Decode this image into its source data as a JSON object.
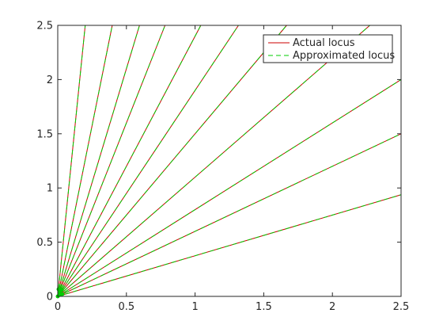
{
  "chart_data": {
    "type": "line",
    "title": "",
    "xlabel": "",
    "ylabel": "",
    "xlim": [
      0,
      2.5
    ],
    "ylim": [
      0,
      2.5
    ],
    "xticks": [
      0,
      0.5,
      1,
      1.5,
      2,
      2.5
    ],
    "yticks": [
      0,
      0.5,
      1,
      1.5,
      2,
      2.5
    ],
    "xtick_labels": [
      "0",
      "0.5",
      "1",
      "1.5",
      "2",
      "2.5"
    ],
    "ytick_labels": [
      "0",
      "0.5",
      "1",
      "1.5",
      "2",
      "2.5"
    ],
    "grid": false,
    "legend_position": "top-right",
    "series": [
      {
        "name": "Actual locus",
        "color": "#cc0000",
        "dash": "solid",
        "ray_slopes": [
          0.375,
          0.6,
          0.8,
          1.1,
          1.5,
          1.9,
          2.4,
          3.2,
          4.2,
          6.3,
          12.5
        ]
      },
      {
        "name": "Approximated locus",
        "color": "#00cc00",
        "dash": "dashed",
        "ray_slopes": [
          0.375,
          0.6,
          0.8,
          1.1,
          1.5,
          1.9,
          2.4,
          3.2,
          4.2,
          6.3,
          12.5
        ]
      }
    ]
  }
}
